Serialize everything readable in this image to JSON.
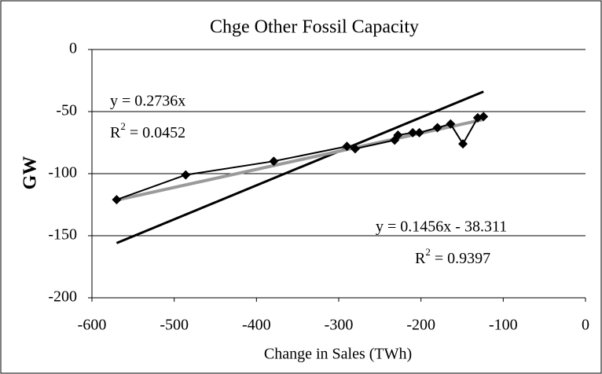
{
  "chart_data": {
    "type": "line",
    "title": "Chge Other Fossil Capacity",
    "x_label": "Change in Sales (TWh)",
    "y_label": "GW",
    "xlim": [
      -600,
      0
    ],
    "xticks": [
      -600,
      -500,
      -400,
      -300,
      -200,
      -100,
      0
    ],
    "ylim": [
      -200,
      0
    ],
    "yticks": [
      -200,
      -150,
      -100,
      -50,
      0
    ],
    "grid": true,
    "series": [
      {
        "color": "#000000",
        "x": [
          -570,
          -486,
          -379,
          -290,
          -280,
          -232,
          -228,
          -210,
          -202,
          -180,
          -164,
          -149,
          -131,
          -124
        ],
        "values": [
          -121,
          -101,
          -90,
          -78,
          -80,
          -73,
          -69,
          -67,
          -67,
          -63,
          -60,
          -76,
          -55,
          -54
        ]
      }
    ],
    "trendlines": [
      {
        "slope": 0.2736,
        "intercept": 0,
        "color": "#000000",
        "equation": "y = 0.2736x",
        "r2": {
          "base": "R",
          "sup": "2",
          "rest": " = 0.0452"
        }
      },
      {
        "slope": 0.1456,
        "intercept": -38.311,
        "color": "#9a9a9a",
        "equation": "y = 0.1456x - 38.311",
        "r2": {
          "base": "R",
          "sup": "2",
          "rest": " = 0.9397"
        }
      }
    ]
  }
}
